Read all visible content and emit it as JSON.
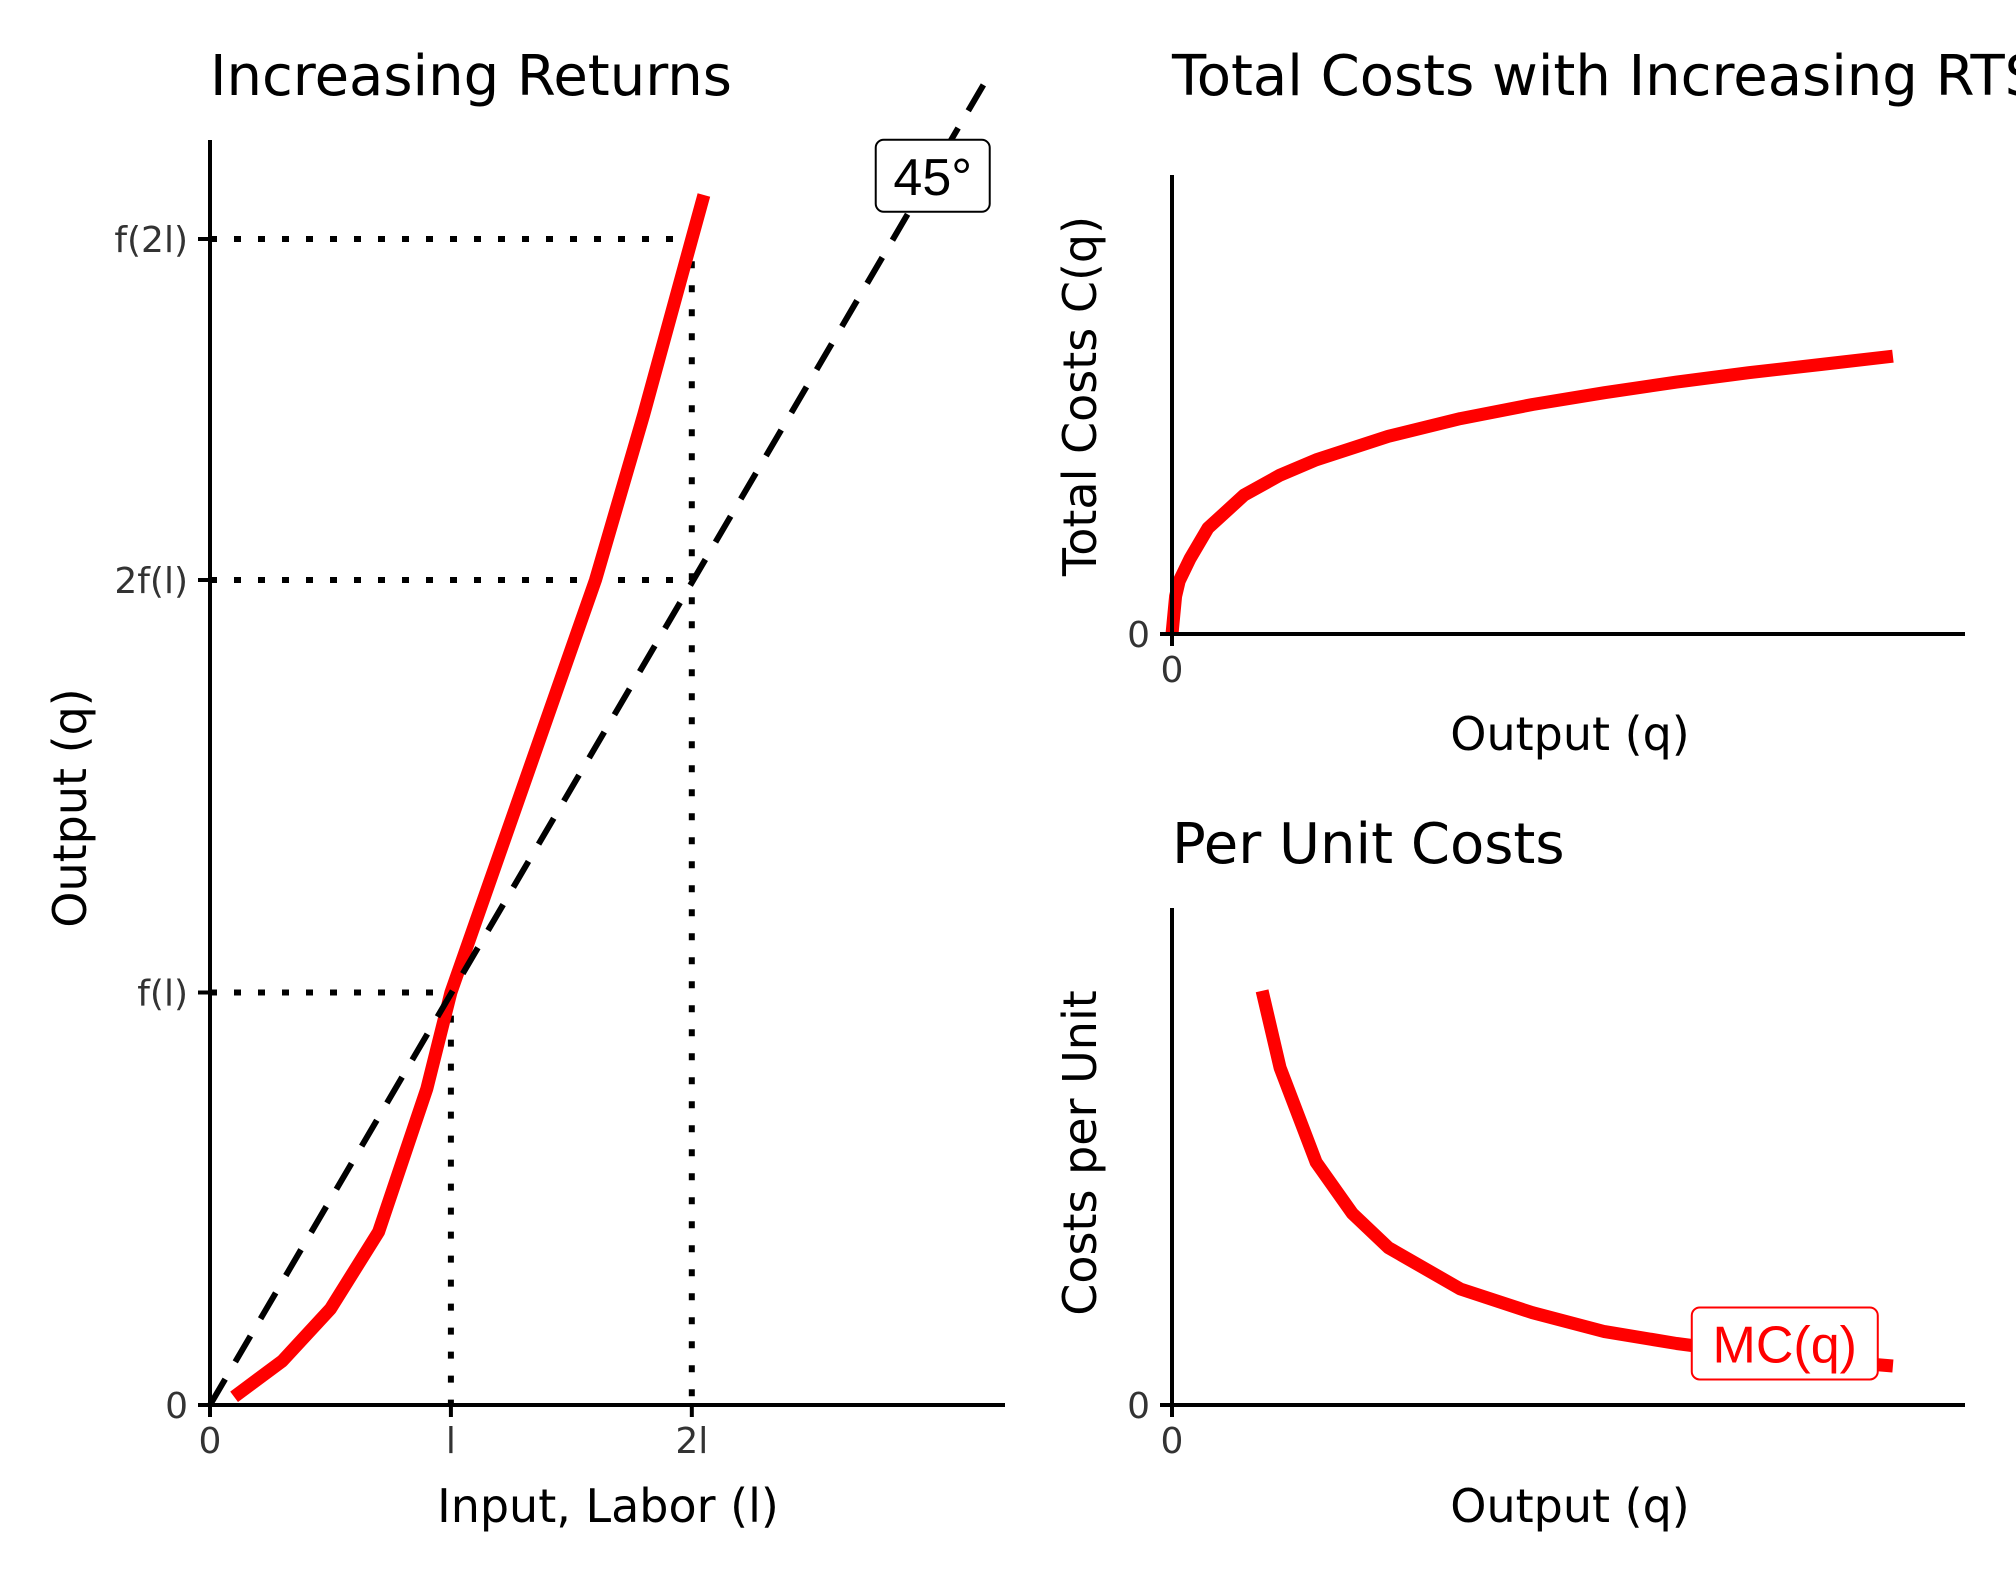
{
  "colors": {
    "curve": "#ff0000",
    "axis": "#000000",
    "ticks": "#333333"
  },
  "chart_data": [
    {
      "type": "line",
      "title": "Increasing Returns",
      "xlabel": "Input, Labor (l)",
      "ylabel": "Output (q)",
      "xlim": [
        0,
        3.3
      ],
      "ylim": [
        0,
        4.6
      ],
      "x_ticks": [
        {
          "value": 0,
          "label": "0"
        },
        {
          "value": 1,
          "label": "l"
        },
        {
          "value": 2,
          "label": "2l"
        }
      ],
      "y_ticks": [
        {
          "value": 0,
          "label": "0"
        },
        {
          "value": 1.5,
          "label": "f(l)"
        },
        {
          "value": 3.0,
          "label": "2f(l)"
        },
        {
          "value": 4.24,
          "label": "f(2l)"
        }
      ],
      "series": [
        {
          "style": "solid",
          "color": "#ff0000",
          "x": [
            0.1,
            0.3,
            0.5,
            0.7,
            0.9,
            1.0,
            1.2,
            1.4,
            1.6,
            1.8,
            2.0,
            2.05
          ],
          "y": [
            0.03,
            0.16,
            0.35,
            0.63,
            1.15,
            1.5,
            2.0,
            2.5,
            3.0,
            3.6,
            4.24,
            4.4
          ]
        },
        {
          "style": "dashed",
          "color": "#000000",
          "x": [
            0,
            3.25
          ],
          "y": [
            0,
            4.86
          ]
        },
        {
          "style": "dotted",
          "color": "#000000",
          "x": [
            0,
            1,
            1
          ],
          "y": [
            1.5,
            1.5,
            0
          ]
        },
        {
          "style": "dotted",
          "color": "#000000",
          "x": [
            0,
            2
          ],
          "y": [
            3.0,
            3.0
          ]
        },
        {
          "style": "dotted",
          "color": "#000000",
          "x": [
            0,
            2,
            2
          ],
          "y": [
            4.24,
            4.24,
            0
          ]
        }
      ],
      "annotations": [
        {
          "text": "45°",
          "x": 3.0,
          "y": 4.47
        }
      ]
    },
    {
      "type": "line",
      "title": "Total Costs with Increasing RTS",
      "xlabel": "Output (q)",
      "ylabel": "Total Costs C(q)",
      "xlim": [
        0,
        11
      ],
      "ylim": [
        0,
        3.9
      ],
      "x_ticks": [
        {
          "value": 0,
          "label": "0"
        }
      ],
      "y_ticks": [
        {
          "value": 0,
          "label": "0"
        }
      ],
      "series": [
        {
          "style": "solid",
          "color": "#ff0000",
          "x": [
            0,
            0.05,
            0.1,
            0.25,
            0.5,
            1,
            1.5,
            2,
            3,
            4,
            5,
            6,
            7,
            8,
            9,
            10
          ],
          "y": [
            0,
            0.32,
            0.45,
            0.64,
            0.9,
            1.18,
            1.35,
            1.48,
            1.68,
            1.83,
            1.95,
            2.05,
            2.14,
            2.22,
            2.29,
            2.36
          ]
        }
      ]
    },
    {
      "type": "line",
      "title": "Per Unit Costs",
      "xlabel": "Output (q)",
      "ylabel": "Costs per Unit",
      "xlim": [
        0,
        11
      ],
      "ylim": [
        0,
        4.2
      ],
      "x_ticks": [
        {
          "value": 0,
          "label": "0"
        }
      ],
      "y_ticks": [
        {
          "value": 0,
          "label": "0"
        }
      ],
      "series": [
        {
          "style": "solid",
          "color": "#ff0000",
          "x": [
            1.25,
            1.5,
            2,
            2.5,
            3,
            4,
            5,
            6,
            7,
            8,
            9,
            10
          ],
          "y": [
            3.5,
            2.85,
            2.05,
            1.62,
            1.33,
            0.98,
            0.78,
            0.62,
            0.52,
            0.44,
            0.38,
            0.33
          ]
        }
      ],
      "annotations": [
        {
          "text": "MC(q)",
          "x": 8.5,
          "y": 0.52
        }
      ]
    }
  ]
}
